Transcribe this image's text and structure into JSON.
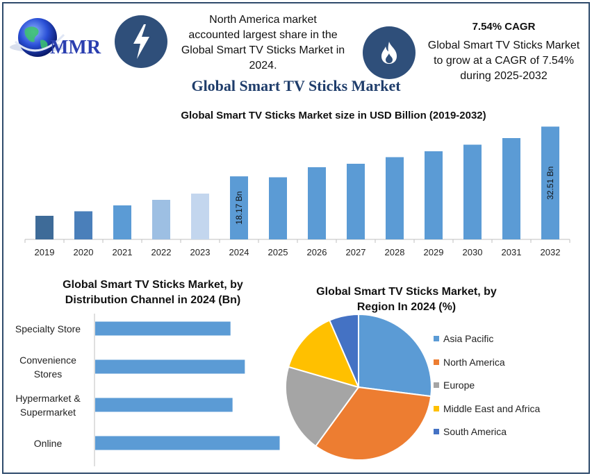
{
  "logo": {
    "text": "MMR"
  },
  "highlights": {
    "region": {
      "icon": "lightning-icon",
      "text": [
        "North America market",
        "accounted largest share in the",
        "Global Smart TV Sticks Market in",
        "2024."
      ]
    },
    "cagr": {
      "icon": "flame-icon",
      "title": "7.54% CAGR",
      "text": [
        "Global Smart TV Sticks Market",
        "to grow at a CAGR of 7.54%",
        "during 2025-2032"
      ]
    }
  },
  "main_title": "Global Smart TV Sticks Market",
  "colors": {
    "frame": "#2e4a6b",
    "icon_bg": "#2f4f7a",
    "title": "#1f3d6b",
    "bar": "#5b9bd5"
  },
  "chart_data": [
    {
      "type": "bar",
      "title": "Global Smart TV Sticks Market size in USD Billion (2019-2032)",
      "categories": [
        "2019",
        "2020",
        "2021",
        "2022",
        "2023",
        "2024",
        "2025",
        "2026",
        "2027",
        "2028",
        "2029",
        "2030",
        "2031",
        "2032"
      ],
      "values": [
        6.8,
        8.1,
        9.8,
        11.4,
        13.2,
        18.17,
        17.9,
        20.8,
        21.8,
        23.7,
        25.4,
        27.3,
        29.2,
        32.51
      ],
      "colors": [
        "#3e6b98",
        "#4a7fba",
        "#5b9bd5",
        "#9dbfe3",
        "#c3d6ee",
        "#5b9bd5",
        "#5b9bd5",
        "#5b9bd5",
        "#5b9bd5",
        "#5b9bd5",
        "#5b9bd5",
        "#5b9bd5",
        "#5b9bd5",
        "#5b9bd5"
      ],
      "data_labels": {
        "2024": "18.17 Bn",
        "2032": "32.51 Bn"
      },
      "ylim": [
        0,
        33
      ],
      "xlabel": "",
      "ylabel": "",
      "grid": false
    },
    {
      "type": "bar",
      "orientation": "horizontal",
      "title": [
        "Global Smart TV Sticks Market, by",
        "Distribution Channel in 2024 (Bn)"
      ],
      "categories": [
        [
          "Specialty Store"
        ],
        [
          "Convenience",
          "Stores"
        ],
        [
          "Hypermarket &",
          "Supermarket"
        ],
        [
          "Online"
        ]
      ],
      "values": [
        3.3,
        3.65,
        3.35,
        4.5
      ],
      "xlim": [
        0,
        5
      ],
      "grid": false
    },
    {
      "type": "pie",
      "title": [
        "Global Smart TV Sticks Market, by",
        "Region In 2024 (%)"
      ],
      "labels": [
        "Asia Pacific",
        "North America",
        "Europe",
        "Middle East and Africa",
        "South America"
      ],
      "values": [
        27,
        33,
        19.5,
        14,
        6.5
      ],
      "colors": [
        "#5b9bd5",
        "#ed7d31",
        "#a5a5a5",
        "#ffc000",
        "#4472c4"
      ],
      "legend": "right"
    }
  ]
}
